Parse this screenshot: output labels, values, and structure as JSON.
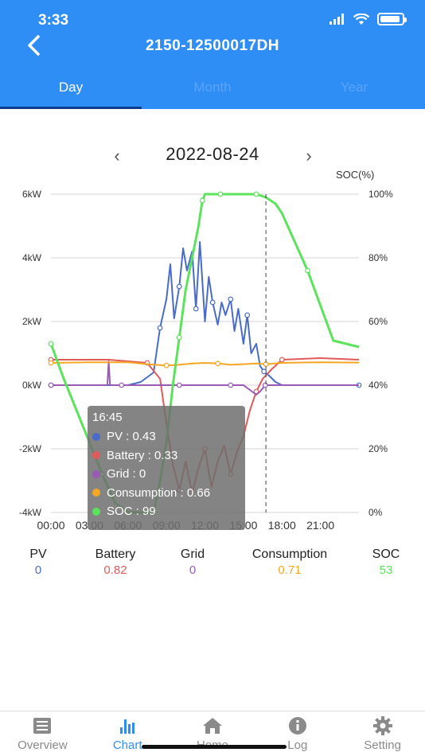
{
  "status": {
    "time": "3:33"
  },
  "header": {
    "title": "2150-12500017DH"
  },
  "tabs": [
    {
      "label": "Day",
      "active": true
    },
    {
      "label": "Month",
      "active": false
    },
    {
      "label": "Year",
      "active": false
    }
  ],
  "date": {
    "value": "2022-08-24"
  },
  "chart_data": {
    "type": "line",
    "soc_axis_label": "SOC(%)",
    "x_ticks": [
      "00:00",
      "03:00",
      "06:00",
      "09:00",
      "12:00",
      "15:00",
      "18:00",
      "21:00"
    ],
    "left_axis": {
      "ticks": [
        "6kW",
        "4kW",
        "2kW",
        "0kW",
        "-2kW",
        "-4kW"
      ],
      "range": [
        -4,
        6
      ],
      "unit": "kW"
    },
    "right_axis": {
      "ticks": [
        "100%",
        "80%",
        "60%",
        "40%",
        "20%",
        "0%"
      ],
      "range": [
        0,
        100
      ],
      "unit": "%"
    },
    "x_range_hours": [
      0,
      24
    ],
    "grid": true,
    "series": [
      {
        "name": "PV",
        "color": "#4a6cc8",
        "axis": "left",
        "x": [
          0,
          6,
          7,
          8,
          8.5,
          9,
          9.3,
          9.6,
          10,
          10.3,
          10.6,
          11,
          11.3,
          11.6,
          12,
          12.3,
          12.6,
          13,
          13.3,
          13.6,
          14,
          14.3,
          14.6,
          15,
          15.3,
          15.6,
          16,
          16.3,
          16.6,
          17,
          17.5,
          18,
          24
        ],
        "y": [
          0,
          0,
          0.1,
          0.4,
          1.8,
          2.7,
          3.8,
          2.1,
          3.1,
          4.3,
          3.6,
          4.2,
          2.4,
          4.5,
          2.0,
          3.4,
          2.6,
          1.9,
          2.6,
          2.2,
          2.7,
          1.7,
          2.4,
          1.3,
          2.2,
          1.0,
          1.3,
          0.6,
          0.43,
          0.3,
          0.1,
          0,
          0
        ]
      },
      {
        "name": "Battery",
        "color": "#e05a5a",
        "axis": "left",
        "x": [
          0,
          3,
          4.5,
          6,
          7.5,
          8.5,
          9,
          9.5,
          10,
          10.5,
          11,
          11.5,
          12,
          12.5,
          13,
          13.5,
          14,
          14.5,
          15,
          15.5,
          16,
          16.5,
          16.8,
          17.2,
          18,
          21,
          24
        ],
        "y": [
          0.8,
          0.8,
          0.8,
          0.75,
          0.7,
          0.2,
          -1.2,
          -2.5,
          -3.3,
          -2.4,
          -3.4,
          -2.6,
          -2.0,
          -3.2,
          -2.4,
          -1.9,
          -2.8,
          -2.1,
          -1.6,
          -0.8,
          -0.2,
          0.2,
          0.33,
          0.5,
          0.8,
          0.85,
          0.8
        ]
      },
      {
        "name": "Grid",
        "color": "#9b59b6",
        "axis": "left",
        "x": [
          0,
          4.4,
          4.5,
          4.6,
          5.5,
          6,
          8,
          9,
          10,
          11,
          12,
          13,
          14,
          15,
          16,
          16.3,
          16.7,
          17,
          18,
          24
        ],
        "y": [
          0,
          0,
          0.75,
          0,
          0,
          0,
          0,
          0,
          0,
          0,
          0,
          0,
          0,
          0,
          -0.3,
          -0.2,
          0,
          0,
          0,
          0
        ]
      },
      {
        "name": "Consumption",
        "color": "#f5a623",
        "axis": "left",
        "x": [
          0,
          3,
          6,
          7.5,
          9,
          10,
          11,
          12,
          13,
          14,
          15,
          16,
          16.75,
          18,
          21,
          24
        ],
        "y": [
          0.7,
          0.72,
          0.72,
          0.66,
          0.62,
          0.64,
          0.68,
          0.7,
          0.68,
          0.64,
          0.66,
          0.68,
          0.66,
          0.7,
          0.72,
          0.71
        ]
      },
      {
        "name": "SOC",
        "color": "#5be35b",
        "axis": "right",
        "x": [
          0,
          1,
          2,
          3,
          4,
          5,
          6,
          7,
          8,
          8.5,
          9,
          9.5,
          10,
          10.5,
          11,
          11.5,
          11.8,
          12,
          12.5,
          13,
          13.2,
          14,
          14.5,
          15,
          16,
          16.75,
          17.5,
          18,
          20,
          22,
          24
        ],
        "y": [
          53,
          42,
          32,
          22,
          12,
          3,
          0,
          0,
          0,
          10,
          22,
          40,
          55,
          70,
          80,
          90,
          98,
          100,
          100,
          100,
          100,
          100,
          100,
          100,
          100,
          99,
          97,
          94,
          76,
          54,
          52
        ]
      }
    ],
    "cursor_x": 16.75
  },
  "tooltip": {
    "time": "16:45",
    "rows": [
      {
        "label": "PV : 0.43",
        "color": "#4a6cc8"
      },
      {
        "label": "Battery : 0.33",
        "color": "#e05a5a"
      },
      {
        "label": "Grid : 0",
        "color": "#9b59b6"
      },
      {
        "label": "Consumption : 0.66",
        "color": "#f5a623"
      },
      {
        "label": "SOC : 99",
        "color": "#5be35b"
      }
    ]
  },
  "summary": [
    {
      "label": "PV",
      "value": "0",
      "color": "#4a6cc8"
    },
    {
      "label": "Battery",
      "value": "0.82",
      "color": "#e05a5a"
    },
    {
      "label": "Grid",
      "value": "0",
      "color": "#9b59b6"
    },
    {
      "label": "Consumption",
      "value": "0.71",
      "color": "#f5a623"
    },
    {
      "label": "SOC",
      "value": "53",
      "color": "#5be35b"
    }
  ],
  "nav": [
    {
      "label": "Overview",
      "icon": "overview-icon",
      "active": false
    },
    {
      "label": "Chart",
      "icon": "chart-icon",
      "active": true
    },
    {
      "label": "Home",
      "icon": "home-icon",
      "active": false
    },
    {
      "label": "Log",
      "icon": "info-icon",
      "active": false
    },
    {
      "label": "Setting",
      "icon": "gear-icon",
      "active": false
    }
  ]
}
